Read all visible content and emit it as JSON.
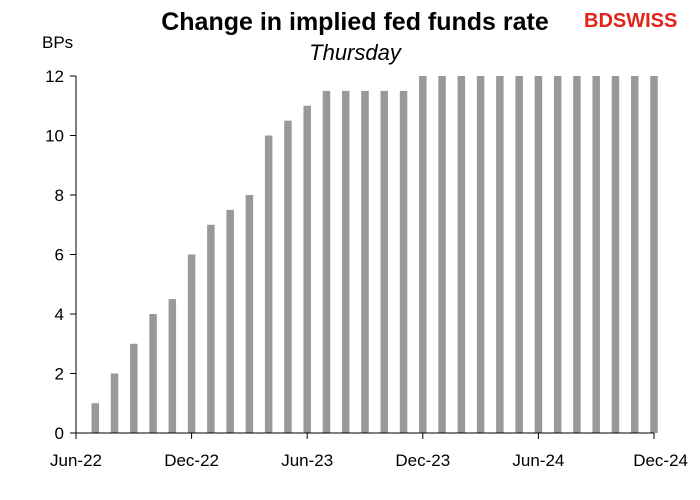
{
  "logo": {
    "part1": "BD",
    "part2": "SWISS",
    "color1": "#e2231a",
    "color2": "#e2231a"
  },
  "chart_data": {
    "type": "bar",
    "title": "Change in implied fed funds rate",
    "subtitle": "Thursday",
    "ylabel": "BPs",
    "xlabel": "",
    "ylim": [
      0,
      12
    ],
    "yticks": [
      0,
      2,
      4,
      6,
      8,
      10,
      12
    ],
    "xlim": [
      "Jun-22",
      "Dec-24"
    ],
    "xticks": [
      "Jun-22",
      "Dec-22",
      "Jun-23",
      "Dec-23",
      "Jun-24",
      "Dec-24"
    ],
    "grid": false,
    "bar_color": "#999999",
    "categories": [
      "Jul-22",
      "Aug-22",
      "Sep-22",
      "Oct-22",
      "Nov-22",
      "Dec-22",
      "Jan-23",
      "Feb-23",
      "Mar-23",
      "Apr-23",
      "May-23",
      "Jun-23",
      "Jul-23",
      "Aug-23",
      "Sep-23",
      "Oct-23",
      "Nov-23",
      "Dec-23",
      "Jan-24",
      "Feb-24",
      "Mar-24",
      "Apr-24",
      "May-24",
      "Jun-24",
      "Jul-24",
      "Aug-24",
      "Sep-24",
      "Oct-24",
      "Nov-24",
      "Dec-24"
    ],
    "values": [
      1,
      2,
      3,
      4,
      4.5,
      6,
      7,
      7.5,
      8,
      10,
      10.5,
      11,
      11.5,
      11.5,
      11.5,
      11.5,
      11.5,
      12,
      12,
      12,
      12,
      12,
      12,
      12,
      12,
      12,
      12,
      12,
      12,
      12
    ]
  }
}
